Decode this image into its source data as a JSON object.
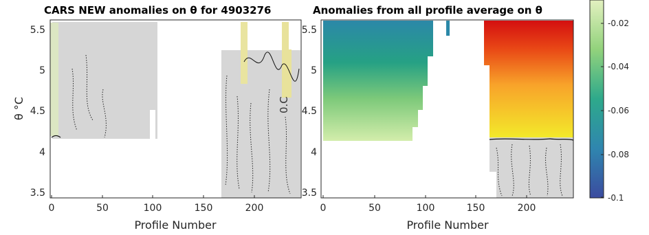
{
  "chart_data": [
    {
      "type": "heatmap",
      "title": "CARS NEW anomalies on θ for 4903276",
      "xlabel": "Profile Number",
      "ylabel": "θ °C",
      "xlim": [
        0,
        245
      ],
      "ylim": [
        3.45,
        5.62
      ],
      "x_ticks": [
        "0",
        "50",
        "100",
        "150",
        "200"
      ],
      "y_ticks": [
        "3.5",
        "4",
        "4.5",
        "5",
        "5.5"
      ],
      "overlay_label": "0.C",
      "regions": [
        {
          "x": [
            0,
            100
          ],
          "y": [
            4.15,
            5.62
          ],
          "value": 0.0
        },
        {
          "x": [
            168,
            245
          ],
          "y": [
            3.45,
            5.62
          ],
          "value": 0.0
        }
      ]
    },
    {
      "type": "heatmap",
      "title": "Anomalies from all profile average on θ",
      "xlabel": "Profile Number",
      "ylabel": "",
      "xlim": [
        0,
        245
      ],
      "ylim": [
        3.45,
        5.62
      ],
      "x_ticks": [
        "0",
        "50",
        "100",
        "150",
        "200"
      ],
      "y_ticks": [
        "3.5",
        "4",
        "4.5",
        "5",
        "5.5"
      ],
      "regions": [
        {
          "x": [
            0,
            108
          ],
          "y": [
            4.15,
            5.62
          ],
          "gradient": "teal-top to light-green bottom"
        },
        {
          "x": [
            121,
            124
          ],
          "y": [
            5.35,
            5.62
          ],
          "gradient": "teal"
        },
        {
          "x": [
            160,
            245
          ],
          "y": [
            4.15,
            5.62
          ],
          "gradient": "red-top to yellow bottom"
        },
        {
          "x": [
            168,
            245
          ],
          "y": [
            3.45,
            4.15
          ],
          "value": 0.0
        }
      ],
      "colorbar": {
        "ticks": [
          "-0.02",
          "-0.04",
          "-0.06",
          "-0.08",
          "-0.1"
        ],
        "range": [
          -0.1,
          0.0
        ]
      }
    }
  ]
}
